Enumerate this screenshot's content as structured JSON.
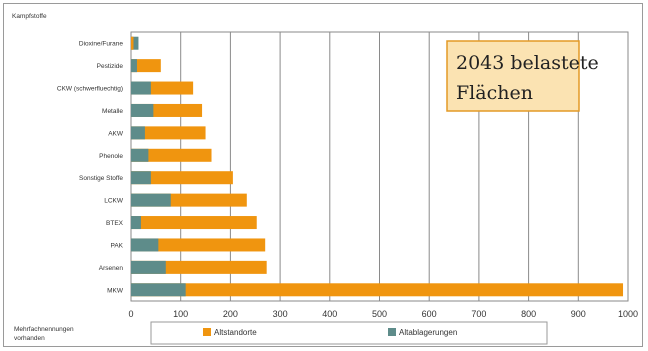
{
  "chart_data": {
    "type": "bar",
    "orientation": "horizontal",
    "stacked": false,
    "title": "",
    "header_label": "Kampfstoffe",
    "categories": [
      "Dioxine/Furane",
      "Pestizide",
      "CKW (schwerfluechtig)",
      "Metalle",
      "AKW",
      "Phenole",
      "Sonstige Stoffe",
      "LCKW",
      "BTEX",
      "PAK",
      "Arsenen",
      "MKW"
    ],
    "series": [
      {
        "name": "Altstandorte",
        "color": "#f0950f",
        "values": [
          5,
          60,
          125,
          143,
          150,
          162,
          205,
          233,
          253,
          270,
          273,
          990
        ]
      },
      {
        "name": "Altablagerungen",
        "color": "#5e8c8a",
        "values": [
          15,
          12,
          40,
          45,
          28,
          35,
          40,
          80,
          20,
          55,
          70,
          110
        ]
      }
    ],
    "x_ticks": [
      "0",
      "100",
      "200",
      "300",
      "400",
      "500",
      "600",
      "700",
      "800",
      "900",
      "1000"
    ],
    "xlim": [
      0,
      1000
    ],
    "grid": "vertical",
    "bottom_label": [
      "Mehrfachnennungen",
      "vorhanden"
    ],
    "annotation": [
      "2043 belastete",
      "Flächen"
    ],
    "legend_position": "bottom"
  },
  "colors": {
    "grid": "#8a8a8a",
    "plot_bg": "#ffffff",
    "annotation_bg": "#fbe3b2",
    "annotation_border": "#e39a26"
  }
}
